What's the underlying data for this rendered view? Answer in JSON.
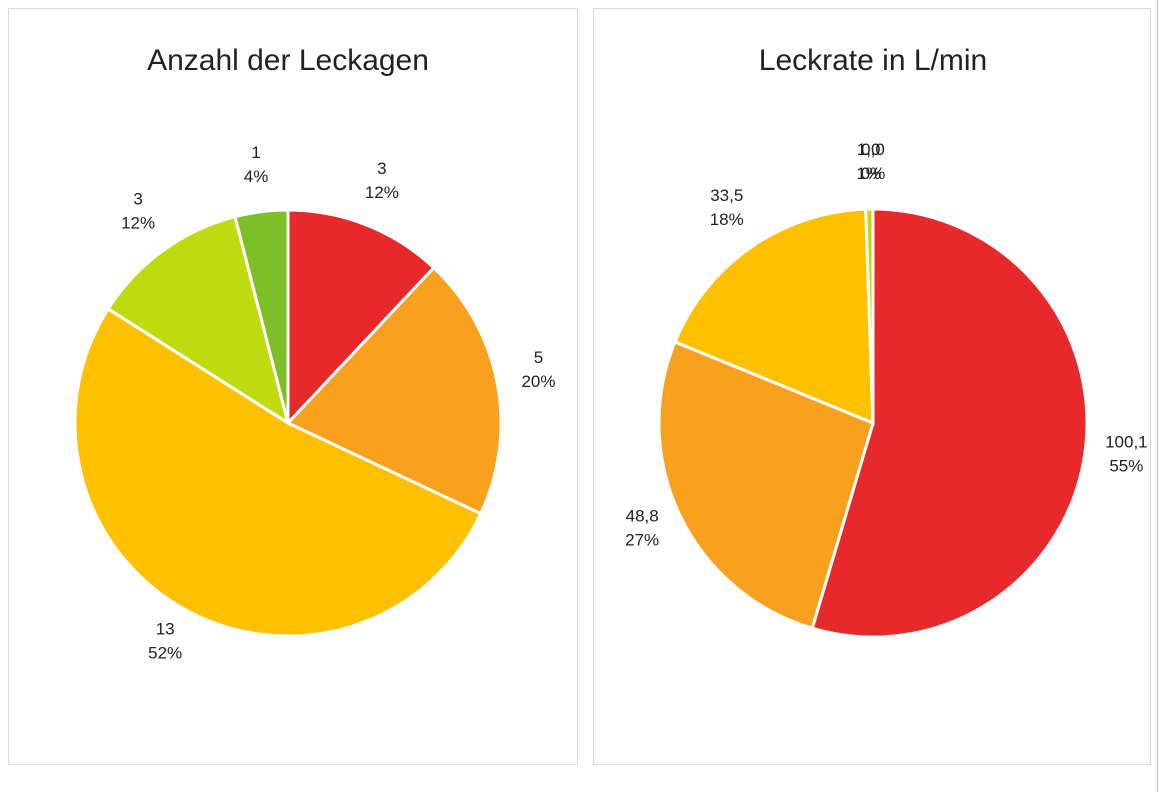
{
  "chart_data": [
    {
      "type": "pie",
      "title": "Anzahl der Leckagen",
      "values": [
        3,
        5,
        13,
        3,
        1
      ],
      "percent_labels": [
        "12%",
        "20%",
        "52%",
        "12%",
        "4%"
      ],
      "colors": [
        "#e8292c",
        "#f9a11f",
        "#ffc000",
        "#bedb0f",
        "#7cbf27"
      ]
    },
    {
      "type": "pie",
      "title": "Leckrate in L/min",
      "values": [
        100.1,
        48.8,
        33.5,
        1.0,
        0.0
      ],
      "value_labels": [
        "100,1",
        "48,8",
        "33,5",
        "1,0",
        "0,0"
      ],
      "percent_labels": [
        "55%",
        "27%",
        "18%",
        "1%",
        "0%"
      ],
      "colors": [
        "#e8292c",
        "#f9a11f",
        "#ffc000",
        "#bedb0f",
        "#7cbf27"
      ]
    }
  ]
}
